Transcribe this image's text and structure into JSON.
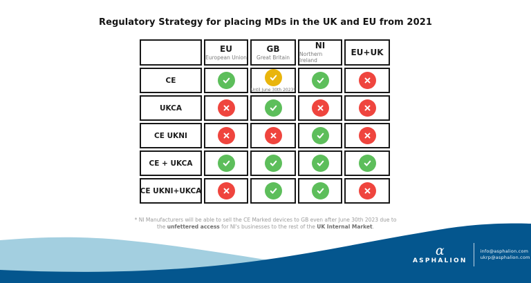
{
  "title": "Regulatory Strategy for placing MDs in the UK and EU from 2021",
  "table": {
    "columns": [
      {
        "code": "EU",
        "subtitle": "European Union"
      },
      {
        "code": "GB",
        "subtitle": "Great Britain"
      },
      {
        "code": "NI",
        "subtitle": "Northern Ireland"
      },
      {
        "code": "EU+UK",
        "subtitle": ""
      }
    ],
    "rows": [
      {
        "label": "CE",
        "cells": [
          {
            "mark": "check",
            "color": "green"
          },
          {
            "mark": "check",
            "color": "yellow",
            "note": "Until June 30th 2023*"
          },
          {
            "mark": "check",
            "color": "green"
          },
          {
            "mark": "cross",
            "color": "red"
          }
        ]
      },
      {
        "label": "UKCA",
        "cells": [
          {
            "mark": "cross",
            "color": "red"
          },
          {
            "mark": "check",
            "color": "green"
          },
          {
            "mark": "cross",
            "color": "red"
          },
          {
            "mark": "cross",
            "color": "red"
          }
        ]
      },
      {
        "label": "CE UKNI",
        "cells": [
          {
            "mark": "cross",
            "color": "red"
          },
          {
            "mark": "cross",
            "color": "red"
          },
          {
            "mark": "check",
            "color": "green"
          },
          {
            "mark": "cross",
            "color": "red"
          }
        ]
      },
      {
        "label": "CE + UKCA",
        "cells": [
          {
            "mark": "check",
            "color": "green"
          },
          {
            "mark": "check",
            "color": "green"
          },
          {
            "mark": "check",
            "color": "green"
          },
          {
            "mark": "check",
            "color": "green"
          }
        ]
      },
      {
        "label": "CE UKNI+UKCA",
        "cells": [
          {
            "mark": "cross",
            "color": "red"
          },
          {
            "mark": "check",
            "color": "green"
          },
          {
            "mark": "check",
            "color": "green"
          },
          {
            "mark": "cross",
            "color": "red"
          }
        ]
      }
    ]
  },
  "footnote": {
    "line1": "* NI Manufacturers will be able to sell the CE Marked devices to GB even after June 30th 2023 due to",
    "line2_parts": [
      {
        "text": "the ",
        "bold": false
      },
      {
        "text": "unfettered access",
        "bold": true
      },
      {
        "text": " for NI's businesses to the rest of the ",
        "bold": false
      },
      {
        "text": "UK Internal Market",
        "bold": true
      },
      {
        "text": ".",
        "bold": false
      }
    ]
  },
  "footer": {
    "brand": "ASPHALION",
    "alpha_glyph": "α",
    "emails": [
      "info@asphalion.com",
      "ukrp@asphalion.com"
    ]
  },
  "colors": {
    "green": "#5DBE5B",
    "yellow": "#E9B50D",
    "red": "#EF453E",
    "dark_blue": "#04568E",
    "light_blue": "#A3CFE0"
  }
}
